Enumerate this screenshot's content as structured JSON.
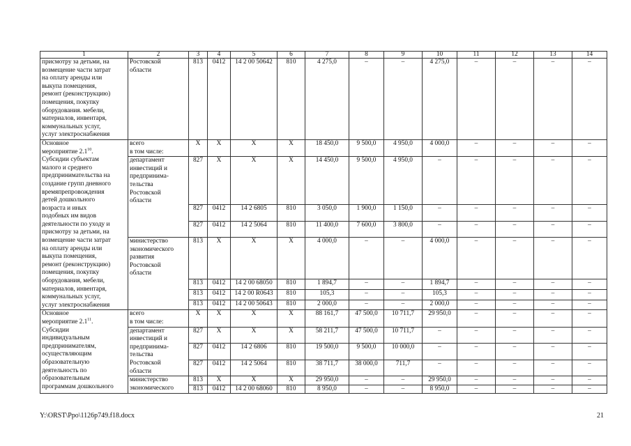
{
  "header": [
    "1",
    "2",
    "3",
    "4",
    "5",
    "6",
    "7",
    "8",
    "9",
    "10",
    "11",
    "12",
    "13",
    "14"
  ],
  "blocks": [
    {
      "desc_pre": "присмотру за детьми, на\nвозмещение части затрат\nна оплату аренды или\nвыкупа помещения,\nремонт (реконструкцию)\nпомещения, покупку\nоборудования. мебели,\nматериалов, инвентаря,\nкоммунальных услуг,\nуслуг электроснабжения",
      "desc_sup": "",
      "desc_post": "",
      "groups": [
        {
          "label": "Ростовской\nобласти",
          "rows": [
            [
              "813",
              "0412",
              "14 2 00 50642",
              "810",
              "4 275,0",
              "–",
              "–",
              "4 275,0",
              "–",
              "–",
              "–",
              "–"
            ]
          ]
        }
      ]
    },
    {
      "desc_pre": "Основное\nмероприятие 2.1",
      "desc_sup": "10",
      "desc_post": ".\nСубсидии субъектам\nмалого и среднего\nпредпринимательства на\nсоздание групп дневного\nвремяпрепровождения\nдетей дошкольного\nвозраста и иных\nподобных им видов\nдеятельности по уходу и\nприсмотру за детьми, на\nвозмещение части затрат\nна оплату аренды или\nвыкупа помещения,\nремонт (реконструкцию)\nпомещения, покупку\nоборудования, мебели,\nматериалов, инвентаря,\nкоммунальных услуг,\nуслуг электроснабжения",
      "groups": [
        {
          "label": "всего\nв том числе:",
          "rows": [
            [
              "X",
              "X",
              "X",
              "X",
              "18 450,0",
              "9 500,0",
              "4 950,0",
              "4 000,0",
              "–",
              "–",
              "–",
              "–"
            ]
          ]
        },
        {
          "label": "департамент\nинвестиций и\nпредпринима-\nтельства\nРостовской\nобласти",
          "rows": [
            [
              "827",
              "X",
              "X",
              "X",
              "14 450,0",
              "9 500,0",
              "4 950,0",
              "–",
              "–",
              "–",
              "–",
              "–"
            ],
            [
              "827",
              "0412",
              "14 2 6805",
              "810",
              "3 050,0",
              "1 900,0",
              "1 150,0",
              "–",
              "–",
              "–",
              "–",
              "–"
            ],
            [
              "827",
              "0412",
              "14 2 5064",
              "810",
              "11 400,0",
              "7 600,0",
              "3 800,0",
              "–",
              "–",
              "–",
              "–",
              "–"
            ]
          ]
        },
        {
          "label": "министерство\nэкономического\nразвития\nРостовской\nобласти",
          "rows": [
            [
              "813",
              "X",
              "X",
              "X",
              "4 000,0",
              "–",
              "–",
              "4 000,0",
              "–",
              "–",
              "–",
              "–"
            ],
            [
              "813",
              "0412",
              "14 2 00 68050",
              "810",
              "1 894,7",
              "–",
              "–",
              "1 894,7",
              "–",
              "–",
              "–",
              "–"
            ],
            [
              "813",
              "0412",
              "14 2 00 R0643",
              "810",
              "105,3",
              "–",
              "–",
              "105,3",
              "–",
              "–",
              "–",
              "–"
            ],
            [
              "813",
              "0412",
              "14 2 00 50643",
              "810",
              "2 000,0",
              "–",
              "–",
              "2 000,0",
              "–",
              "–",
              "–",
              "–"
            ]
          ]
        }
      ]
    },
    {
      "desc_pre": "Основное\nмероприятие 2.1",
      "desc_sup": "11",
      "desc_post": ".\nСубсидии\nиндивидуальным\nпредпринимателям,\nосуществляющим\nобразовательную\nдеятельность по\nобразовательным\nпрограммам дошкольного",
      "groups": [
        {
          "label": "всего\nв том числе:",
          "rows": [
            [
              "X",
              "X",
              "X",
              "X",
              "88 161,7",
              "47 500,0",
              "10 711,7",
              "29 950,0",
              "–",
              "–",
              "–",
              "–"
            ]
          ]
        },
        {
          "label": "департамент\nинвестиций и\nпредпринима-\nтельства\nРостовской\nобласти",
          "rows": [
            [
              "827",
              "X",
              "X",
              "X",
              "58 211,7",
              "47 500,0",
              "10 711,7",
              "–",
              "–",
              "–",
              "–",
              "–"
            ],
            [
              "827",
              "0412",
              "14 2 6806",
              "810",
              "19 500,0",
              "9 500,0",
              "10 000,0",
              "–",
              "–",
              "–",
              "–",
              "–"
            ],
            [
              "827",
              "0412",
              "14 2 5064",
              "810",
              "38 711,7",
              "38 000,0",
              "711,7",
              "–",
              "–",
              "–",
              "–",
              "–"
            ]
          ]
        },
        {
          "label": "министерство\nэкономического",
          "rows": [
            [
              "813",
              "X",
              "X",
              "X",
              "29 950,0",
              "–",
              "–",
              "29 950,0",
              "–",
              "–",
              "–",
              "–"
            ],
            [
              "813",
              "0412",
              "14 2 00 68060",
              "810",
              "8 950,0",
              "–",
              "–",
              "8 950,0",
              "–",
              "–",
              "–",
              "–"
            ]
          ]
        }
      ]
    }
  ],
  "footer": {
    "file_path": "Y:\\ORST\\Ppo\\1126p749.f18.docx",
    "page_number": "21"
  }
}
